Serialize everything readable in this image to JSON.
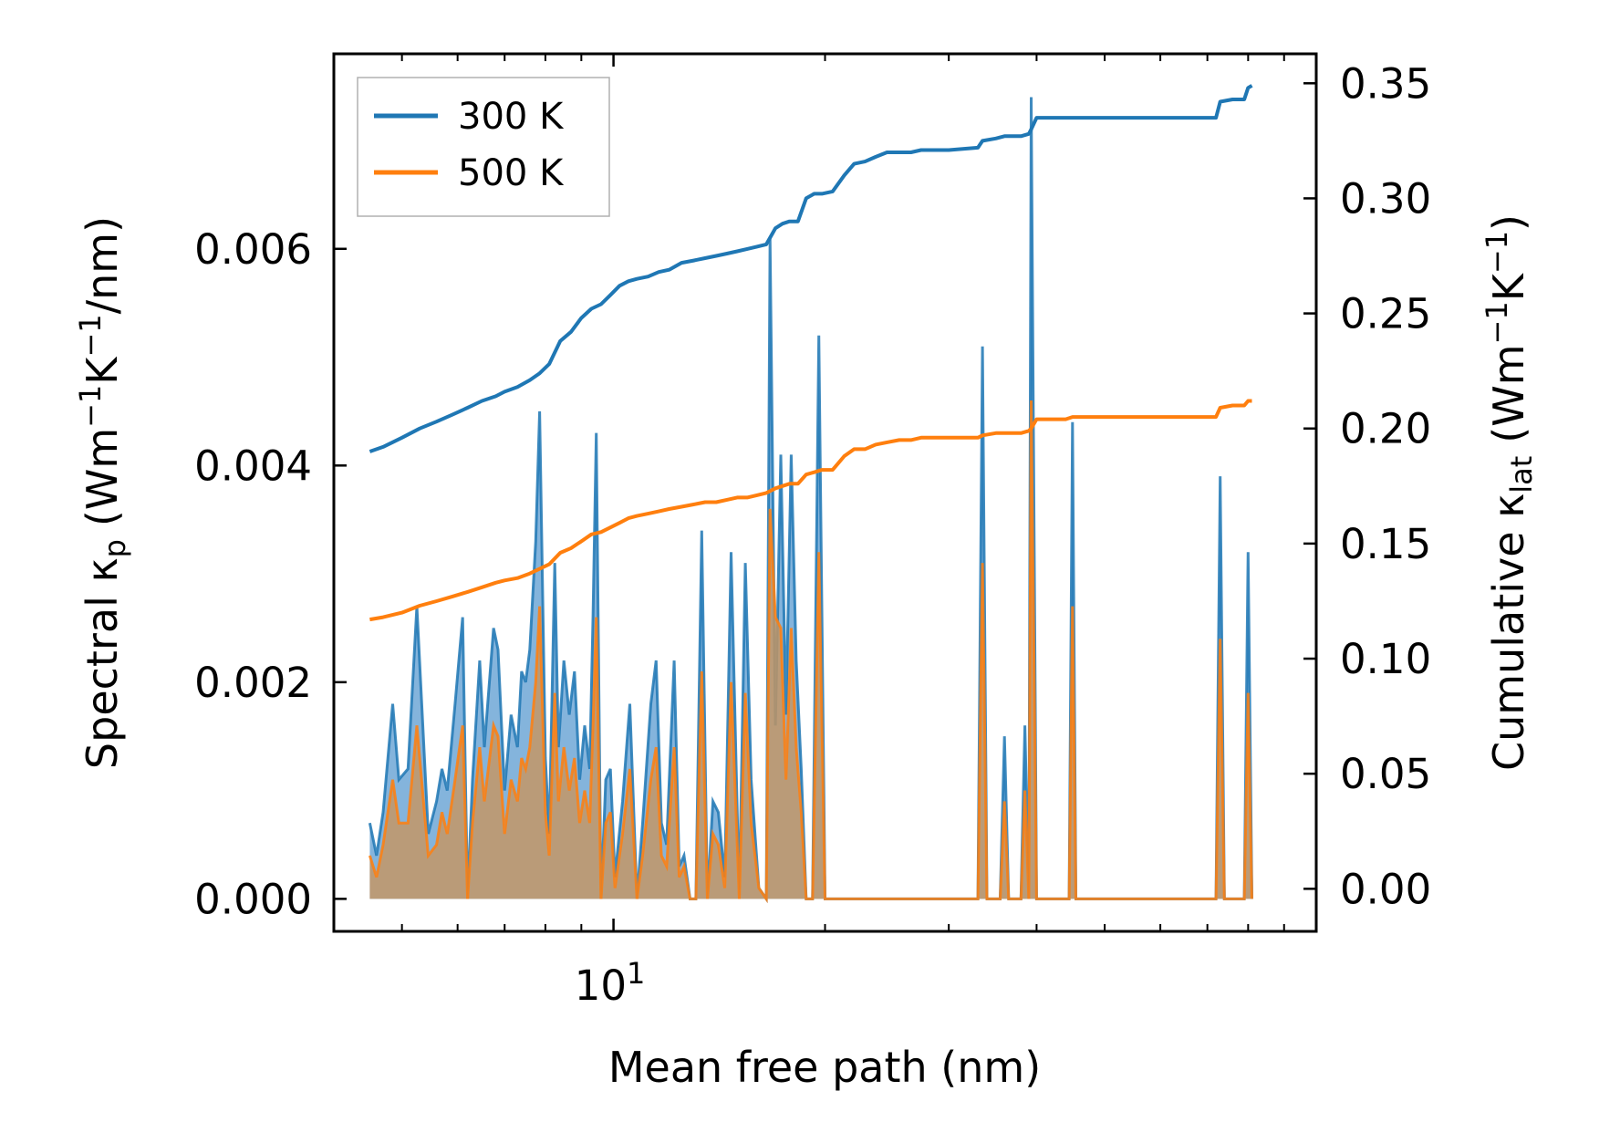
{
  "chart_data": {
    "type": "line",
    "x_scale": "log",
    "xlabel": "Mean free path (nm)",
    "xlim": [
      4.0,
      100.0
    ],
    "x_major_ticks": [
      {
        "value": 10,
        "base": "10",
        "exp": "1"
      }
    ],
    "x_minor_ticks": [
      4,
      5,
      6,
      7,
      8,
      9,
      20,
      30,
      40,
      50,
      60,
      70,
      80,
      90
    ],
    "ylabel_left": {
      "base": "Spectral κ",
      "sub": "p",
      "units": "(Wm",
      "sup1": "−1",
      "mid": "K",
      "sup2": "−1",
      "tail": "/nm)"
    },
    "ylabel_right": {
      "base": "Cumulative κ",
      "sub": "lat",
      "units": "(Wm",
      "sup1": "−1",
      "mid": "K",
      "sup2": "−1",
      "tail": ")"
    },
    "ylim_left": [
      -0.0003,
      0.0078
    ],
    "ylim_right": [
      -0.0185,
      0.3628
    ],
    "y_left_ticks": [
      "0.000",
      "0.002",
      "0.004",
      "0.006"
    ],
    "y_left_tick_values": [
      0,
      0.002,
      0.004,
      0.006
    ],
    "y_right_ticks": [
      "0.00",
      "0.05",
      "0.10",
      "0.15",
      "0.20",
      "0.25",
      "0.30",
      "0.35"
    ],
    "y_right_tick_values": [
      0,
      0.05,
      0.1,
      0.15,
      0.2,
      0.25,
      0.3,
      0.35
    ],
    "legend": {
      "placement": "top-left",
      "entries": [
        "300 K",
        "500 K"
      ]
    },
    "colors": {
      "300 K": "#1f77b4",
      "500 K": "#ff7f0e",
      "fill_300": "#5b9bd0",
      "fill_500": "#c8955f"
    },
    "spectral_series": [
      {
        "name": "300 K spectral",
        "x": [
          4.5,
          4.6,
          4.7,
          4.85,
          4.95,
          5.1,
          5.25,
          5.45,
          5.6,
          5.7,
          5.8,
          5.95,
          6.1,
          6.2,
          6.3,
          6.45,
          6.55,
          6.75,
          6.85,
          7.0,
          7.15,
          7.3,
          7.4,
          7.5,
          7.6,
          7.75,
          7.85,
          8.0,
          8.1,
          8.25,
          8.35,
          8.5,
          8.65,
          8.8,
          8.95,
          9.1,
          9.25,
          9.35,
          9.45,
          9.6,
          9.75,
          9.9,
          10.05,
          10.3,
          10.55,
          10.8,
          11.0,
          11.3,
          11.5,
          11.7,
          11.9,
          12.2,
          12.4,
          12.6,
          12.85,
          13.1,
          13.35,
          13.6,
          13.85,
          14.1,
          14.4,
          14.7,
          15.1,
          15.4,
          15.7,
          16.1,
          16.5,
          16.7,
          17.0,
          17.3,
          17.6,
          17.9,
          18.2,
          18.5,
          18.8,
          19.2,
          19.6,
          20.0,
          20.6,
          21.2,
          21.6,
          22.0,
          22.4,
          22.8,
          23.2,
          23.6,
          24.0,
          24.4,
          24.8,
          25.6,
          26.0,
          26.4,
          26.8,
          27.4,
          33.0,
          33.5,
          34.0,
          35.5,
          36.0,
          36.5,
          38.0,
          38.5,
          39.0,
          39.3,
          40.0,
          44.5,
          45.0,
          45.5,
          72.0,
          73.0,
          74.0,
          79.0,
          80.0,
          81.0
        ],
        "values": [
          0.0007,
          0.0004,
          0.0008,
          0.0018,
          0.0011,
          0.0012,
          0.0027,
          0.0006,
          0.0009,
          0.0012,
          0.001,
          0.0018,
          0.0026,
          0.0,
          0.0011,
          0.0022,
          0.0014,
          0.0025,
          0.0023,
          0.001,
          0.0017,
          0.0014,
          0.0021,
          0.002,
          0.0023,
          0.0033,
          0.0045,
          0.0013,
          0.0006,
          0.0031,
          0.0014,
          0.0022,
          0.0017,
          0.0021,
          0.0011,
          0.0016,
          0.0012,
          0.0026,
          0.0043,
          0.0,
          0.0011,
          0.0012,
          0.0002,
          0.0009,
          0.0018,
          0.0,
          0.0007,
          0.0018,
          0.0022,
          0.0007,
          0.0005,
          0.0022,
          0.0003,
          0.0004,
          0.0,
          0.0,
          0.0034,
          0.0,
          0.0009,
          0.0008,
          0.0002,
          0.0032,
          0.0,
          0.0031,
          0.0011,
          0.0001,
          0.0,
          0.0061,
          0.0016,
          0.0041,
          0.0017,
          0.0041,
          0.0022,
          0.0012,
          0.0,
          0.0,
          0.0052,
          0.0,
          0.0,
          0.0,
          0.0,
          0.0,
          0.0,
          0.0,
          0.0,
          0.0,
          0.0,
          0.0,
          0.0,
          0.0,
          0.0,
          0.0,
          0.0,
          0.0,
          0.0,
          0.0051,
          0.0,
          0.0,
          0.0015,
          0.0,
          0.0,
          0.0016,
          0.0,
          0.0074,
          0.0,
          0.0,
          0.0044,
          0.0,
          0.0,
          0.0039,
          0.0,
          0.0,
          0.0032,
          0.0
        ]
      },
      {
        "name": "500 K spectral",
        "x": [
          4.5,
          4.6,
          4.7,
          4.85,
          4.95,
          5.1,
          5.25,
          5.45,
          5.6,
          5.7,
          5.8,
          5.95,
          6.1,
          6.2,
          6.3,
          6.45,
          6.55,
          6.75,
          6.85,
          7.0,
          7.15,
          7.3,
          7.4,
          7.5,
          7.6,
          7.75,
          7.85,
          8.0,
          8.1,
          8.25,
          8.35,
          8.5,
          8.65,
          8.8,
          8.95,
          9.1,
          9.25,
          9.35,
          9.45,
          9.6,
          9.75,
          9.9,
          10.05,
          10.3,
          10.55,
          10.8,
          11.0,
          11.3,
          11.5,
          11.7,
          11.9,
          12.2,
          12.4,
          12.6,
          12.85,
          13.1,
          13.35,
          13.6,
          13.85,
          14.1,
          14.4,
          14.7,
          15.1,
          15.4,
          15.7,
          16.1,
          16.5,
          16.7,
          17.0,
          17.3,
          17.6,
          17.9,
          18.2,
          18.5,
          18.8,
          19.2,
          19.6,
          20.0,
          20.6,
          21.2,
          21.6,
          22.0,
          22.4,
          22.8,
          23.2,
          23.6,
          24.0,
          24.4,
          24.8,
          25.6,
          26.0,
          26.4,
          26.8,
          27.4,
          33.0,
          33.5,
          34.0,
          35.5,
          36.0,
          36.5,
          38.0,
          38.5,
          39.0,
          39.3,
          40.0,
          44.5,
          45.0,
          45.5,
          72.0,
          73.0,
          74.0,
          79.0,
          80.0,
          81.0
        ],
        "values": [
          0.0004,
          0.0002,
          0.0005,
          0.0011,
          0.0007,
          0.0007,
          0.0016,
          0.0004,
          0.0005,
          0.0008,
          0.0006,
          0.0011,
          0.0016,
          0.0,
          0.0007,
          0.0014,
          0.0009,
          0.0016,
          0.0015,
          0.0006,
          0.0011,
          0.0009,
          0.0013,
          0.0012,
          0.0014,
          0.002,
          0.0027,
          0.0008,
          0.0004,
          0.0019,
          0.0009,
          0.0014,
          0.001,
          0.0013,
          0.0007,
          0.001,
          0.0007,
          0.0016,
          0.0026,
          0.0,
          0.0007,
          0.0008,
          0.0001,
          0.0006,
          0.0012,
          0.0,
          0.0004,
          0.0011,
          0.0014,
          0.0004,
          0.0003,
          0.0014,
          0.0002,
          0.0003,
          0.0,
          0.0,
          0.0021,
          0.0,
          0.0006,
          0.0005,
          0.0001,
          0.002,
          0.0,
          0.0019,
          0.0007,
          0.0001,
          0.0,
          0.0036,
          0.0026,
          0.0025,
          0.0011,
          0.0025,
          0.0014,
          0.0008,
          0.0,
          0.0,
          0.0032,
          0.0,
          0.0,
          0.0,
          0.0,
          0.0,
          0.0,
          0.0,
          0.0,
          0.0,
          0.0,
          0.0,
          0.0,
          0.0,
          0.0,
          0.0,
          0.0,
          0.0,
          0.0,
          0.0031,
          0.0,
          0.0,
          0.0009,
          0.0,
          0.0,
          0.001,
          0.0,
          0.0046,
          0.0,
          0.0,
          0.0027,
          0.0,
          0.0,
          0.0024,
          0.0,
          0.0,
          0.0019,
          0.0
        ]
      }
    ],
    "cumulative_series": [
      {
        "name": "300 K",
        "x": [
          4.5,
          4.7,
          5.0,
          5.3,
          5.6,
          5.9,
          6.2,
          6.5,
          6.8,
          7.0,
          7.3,
          7.6,
          7.85,
          8.1,
          8.4,
          8.7,
          9.0,
          9.3,
          9.6,
          9.9,
          10.2,
          10.5,
          10.8,
          11.2,
          11.6,
          12.0,
          12.5,
          13.0,
          13.5,
          14.0,
          14.5,
          15.0,
          15.5,
          16.0,
          16.5,
          17.0,
          17.4,
          17.8,
          18.3,
          18.8,
          19.3,
          19.8,
          20.5,
          21.3,
          22.0,
          22.8,
          23.6,
          24.5,
          25.5,
          26.5,
          27.4,
          30.0,
          33.0,
          33.5,
          35.0,
          36.0,
          38.0,
          39.0,
          39.3,
          40.0,
          44.0,
          45.0,
          72.0,
          73.0,
          76.0,
          79.0,
          80.0,
          81.0
        ],
        "values": [
          0.19,
          0.192,
          0.196,
          0.2,
          0.203,
          0.206,
          0.209,
          0.212,
          0.214,
          0.216,
          0.218,
          0.221,
          0.224,
          0.228,
          0.238,
          0.242,
          0.248,
          0.252,
          0.254,
          0.258,
          0.262,
          0.264,
          0.265,
          0.266,
          0.268,
          0.269,
          0.272,
          0.273,
          0.274,
          0.275,
          0.276,
          0.277,
          0.278,
          0.279,
          0.28,
          0.287,
          0.289,
          0.29,
          0.29,
          0.3,
          0.302,
          0.302,
          0.303,
          0.31,
          0.315,
          0.316,
          0.318,
          0.32,
          0.32,
          0.32,
          0.321,
          0.321,
          0.322,
          0.325,
          0.326,
          0.327,
          0.327,
          0.328,
          0.33,
          0.335,
          0.335,
          0.335,
          0.335,
          0.342,
          0.343,
          0.343,
          0.348,
          0.349
        ]
      },
      {
        "name": "500 K",
        "x": [
          4.5,
          4.7,
          5.0,
          5.3,
          5.6,
          5.9,
          6.2,
          6.5,
          6.8,
          7.0,
          7.3,
          7.6,
          7.85,
          8.1,
          8.4,
          8.7,
          9.0,
          9.3,
          9.6,
          9.9,
          10.2,
          10.5,
          10.8,
          11.2,
          11.6,
          12.0,
          12.5,
          13.0,
          13.5,
          14.0,
          14.5,
          15.0,
          15.5,
          16.0,
          16.5,
          17.0,
          17.4,
          17.8,
          18.3,
          18.8,
          19.3,
          19.8,
          20.5,
          21.3,
          22.0,
          22.8,
          23.6,
          24.5,
          25.5,
          26.5,
          27.4,
          30.0,
          33.0,
          33.5,
          35.0,
          36.0,
          38.0,
          39.0,
          39.3,
          40.0,
          44.0,
          45.0,
          72.0,
          73.0,
          76.0,
          79.0,
          80.0,
          81.0
        ],
        "values": [
          0.117,
          0.118,
          0.12,
          0.123,
          0.125,
          0.127,
          0.129,
          0.131,
          0.133,
          0.134,
          0.135,
          0.137,
          0.139,
          0.141,
          0.146,
          0.148,
          0.151,
          0.154,
          0.155,
          0.157,
          0.159,
          0.161,
          0.162,
          0.163,
          0.164,
          0.165,
          0.166,
          0.167,
          0.168,
          0.168,
          0.169,
          0.17,
          0.17,
          0.171,
          0.172,
          0.174,
          0.175,
          0.176,
          0.176,
          0.18,
          0.181,
          0.182,
          0.182,
          0.188,
          0.191,
          0.191,
          0.193,
          0.194,
          0.195,
          0.195,
          0.196,
          0.196,
          0.196,
          0.197,
          0.198,
          0.198,
          0.198,
          0.199,
          0.2,
          0.204,
          0.204,
          0.205,
          0.205,
          0.209,
          0.21,
          0.21,
          0.212,
          0.212
        ]
      }
    ]
  }
}
